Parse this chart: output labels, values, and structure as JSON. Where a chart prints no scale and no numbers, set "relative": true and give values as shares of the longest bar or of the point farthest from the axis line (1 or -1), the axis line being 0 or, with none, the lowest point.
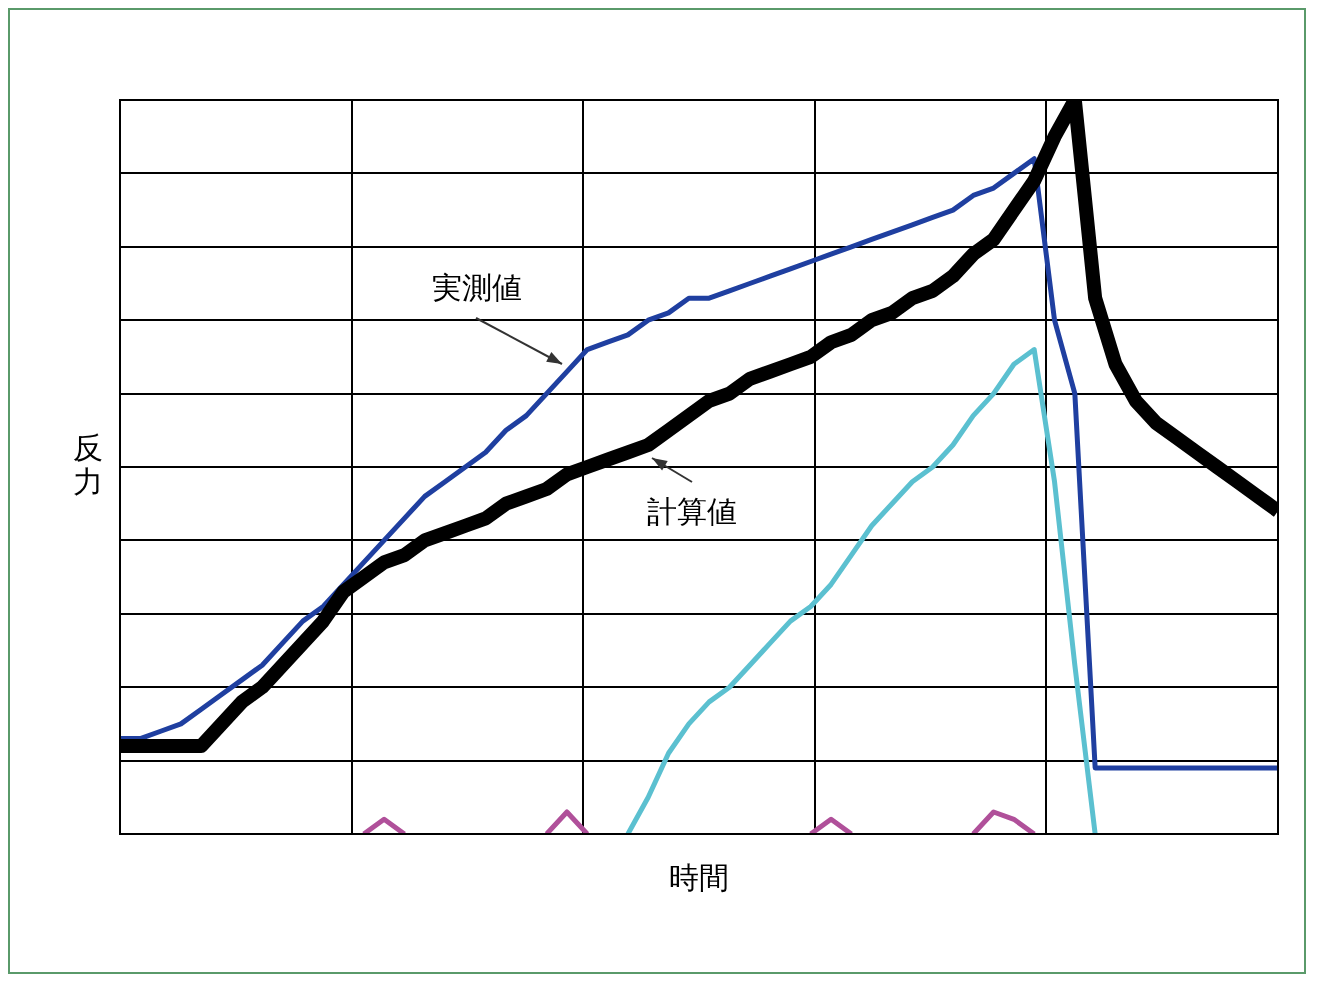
{
  "chart_data": {
    "type": "line",
    "relative": true,
    "xlabel": "時間",
    "ylabel": "反力",
    "grid": true,
    "legend": false,
    "marker": "none",
    "categories": [
      null,
      null,
      null,
      null,
      null,
      null,
      null,
      null,
      null,
      null,
      null,
      null,
      null,
      null,
      null,
      null,
      null,
      null,
      null,
      null,
      null,
      null,
      null,
      null,
      null,
      null,
      null,
      null,
      null,
      null,
      null,
      null,
      null,
      null,
      null,
      null,
      null,
      null,
      null,
      null,
      null,
      null,
      null,
      null,
      null,
      null,
      null,
      null,
      null,
      null,
      null,
      null,
      null,
      null,
      null,
      null,
      null,
      null
    ],
    "series": [
      {
        "name": "実測値",
        "color": "#1f3fa0",
        "values": [
          0.13,
          0.13,
          0.14,
          0.15,
          0.17,
          0.19,
          0.21,
          0.23,
          0.26,
          0.29,
          0.31,
          0.34,
          0.37,
          0.4,
          0.43,
          0.46,
          0.48,
          0.5,
          0.52,
          0.55,
          0.57,
          0.6,
          0.63,
          0.66,
          0.67,
          0.68,
          0.7,
          0.71,
          0.73,
          0.73,
          0.74,
          0.75,
          0.76,
          0.77,
          0.78,
          0.79,
          0.8,
          0.81,
          0.82,
          0.83,
          0.84,
          0.85,
          0.87,
          0.88,
          0.9,
          0.92,
          0.7,
          0.6,
          0.09,
          0.09,
          0.09,
          0.09,
          0.09,
          0.09,
          0.09,
          0.09,
          0.09,
          0.09
        ]
      },
      {
        "name": "計算値",
        "color": "#000000",
        "values": [
          0.12,
          0.12,
          0.12,
          0.12,
          0.12,
          0.15,
          0.18,
          0.2,
          0.23,
          0.26,
          0.29,
          0.33,
          0.35,
          0.37,
          0.38,
          0.4,
          0.41,
          0.42,
          0.43,
          0.45,
          0.46,
          0.47,
          0.49,
          0.5,
          0.51,
          0.52,
          0.53,
          0.55,
          0.57,
          0.59,
          0.6,
          0.62,
          0.63,
          0.64,
          0.65,
          0.67,
          0.68,
          0.7,
          0.71,
          0.73,
          0.74,
          0.76,
          0.79,
          0.81,
          0.85,
          0.89,
          0.95,
          1,
          0.73,
          0.64,
          0.59,
          0.56,
          0.54,
          0.52,
          0.5,
          0.48,
          0.46,
          0.44
        ]
      },
      {
        "color": "#5bc0d0",
        "values": [
          null,
          null,
          null,
          null,
          null,
          null,
          null,
          null,
          null,
          null,
          null,
          null,
          null,
          null,
          null,
          null,
          null,
          null,
          null,
          null,
          null,
          null,
          null,
          null,
          null,
          0,
          0.05,
          0.11,
          0.15,
          0.18,
          0.2,
          0.23,
          0.26,
          0.29,
          0.31,
          0.34,
          0.38,
          0.42,
          0.45,
          0.48,
          0.5,
          0.53,
          0.57,
          0.6,
          0.64,
          0.66,
          0.48,
          0.23,
          0,
          null,
          null,
          null,
          null,
          null,
          null,
          null,
          null,
          null
        ]
      },
      {
        "color": "#b0509a",
        "values": [
          null,
          null,
          null,
          null,
          null,
          null,
          null,
          null,
          null,
          null,
          null,
          null,
          0,
          0.02,
          0,
          null,
          null,
          null,
          null,
          null,
          null,
          0,
          0.03,
          0,
          null,
          null,
          null,
          null,
          null,
          null,
          null,
          null,
          null,
          null,
          0,
          0.02,
          0,
          null,
          null,
          null,
          null,
          null,
          0,
          0.03,
          0.02,
          0,
          null,
          null,
          null,
          null,
          null,
          null,
          null,
          null,
          null,
          null,
          null,
          null
        ]
      }
    ]
  }
}
